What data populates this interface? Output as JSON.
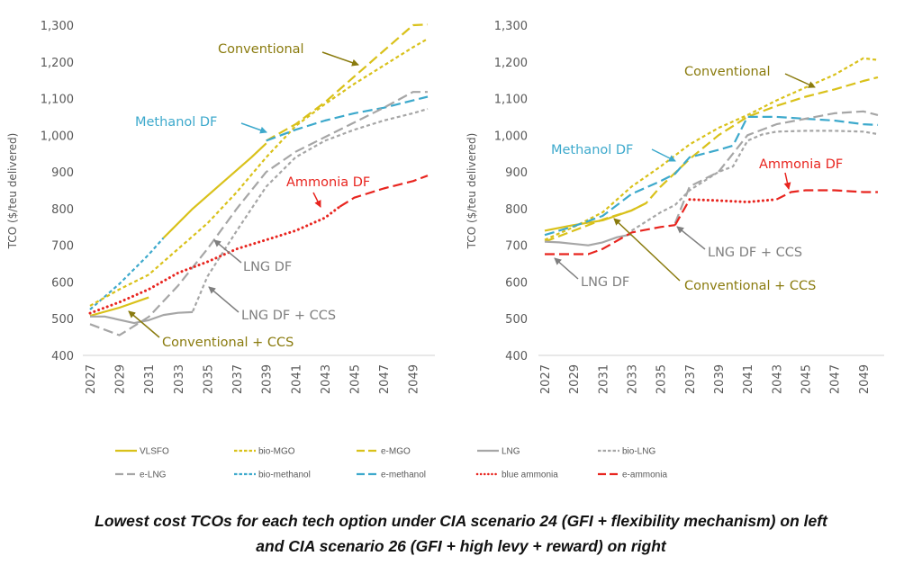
{
  "caption": {
    "line1": "Lowest cost TCOs for each tech option under CIA scenario 24 (GFI + flexibility mechanism) on left",
    "line2": "and CIA scenario 26 (GFI + high levy + reward) on right"
  },
  "series_styles": {
    "VLSFO": {
      "color": "#D9C11A",
      "dash": "solid"
    },
    "bio-MGO": {
      "color": "#D9C11A",
      "dash": "short"
    },
    "e-MGO": {
      "color": "#D9C11A",
      "dash": "long"
    },
    "LNG": {
      "color": "#A6A6A6",
      "dash": "solid"
    },
    "bio-LNG": {
      "color": "#A6A6A6",
      "dash": "short"
    },
    "e-LNG": {
      "color": "#A6A6A6",
      "dash": "long"
    },
    "bio-methanol": {
      "color": "#3DA9CC",
      "dash": "short"
    },
    "e-methanol": {
      "color": "#3DA9CC",
      "dash": "long"
    },
    "blue ammonia": {
      "color": "#E8251F",
      "dash": "dot"
    },
    "e-ammonia": {
      "color": "#E8251F",
      "dash": "long"
    }
  },
  "legend": {
    "position": "bottom",
    "items": [
      "VLSFO",
      "bio-MGO",
      "e-MGO",
      "LNG",
      "bio-LNG",
      "e-LNG",
      "bio-methanol",
      "e-methanol",
      "blue ammonia",
      "e-ammonia"
    ]
  },
  "annotation_colors": {
    "conventional": "#8A7B0E",
    "methanol": "#3DA9CC",
    "ammonia": "#E8251F",
    "lng": "#7F7F7F"
  },
  "chart_data": [
    {
      "type": "line",
      "title": "CIA scenario 24 (GFI + flexibility mechanism)",
      "ylabel": "TCO ($/teu delivered)",
      "xlabel": "",
      "ylim": [
        400,
        1300
      ],
      "yticks": [
        "400",
        "500",
        "600",
        "700",
        "800",
        "900",
        "1,000",
        "1,100",
        "1,200",
        "1,300"
      ],
      "xticks": [
        "2027",
        "2029",
        "2031",
        "2033",
        "2035",
        "2037",
        "2039",
        "2041",
        "2043",
        "2045",
        "2047",
        "2049"
      ],
      "xlim": [
        2027,
        2050
      ],
      "grid": false,
      "series": [
        {
          "name": "VLSFO",
          "x": [
            2027,
            2029,
            2031
          ],
          "values": [
            508,
            530,
            558
          ]
        },
        {
          "name": "bio-methanol",
          "x": [
            2027,
            2029,
            2031,
            2032
          ],
          "values": [
            525,
            595,
            675,
            720
          ]
        },
        {
          "name": "VLSFO",
          "x": [
            2032,
            2034,
            2036,
            2038,
            2039
          ],
          "values": [
            720,
            800,
            870,
            940,
            978
          ]
        },
        {
          "name": "e-MGO",
          "x": [
            2039,
            2041,
            2043,
            2045,
            2047,
            2049,
            2050
          ],
          "values": [
            985,
            1030,
            1090,
            1160,
            1230,
            1300,
            1302
          ]
        },
        {
          "name": "bio-MGO",
          "x": [
            2027,
            2029,
            2031,
            2033,
            2035,
            2037,
            2039,
            2041,
            2043,
            2045,
            2047,
            2049,
            2050
          ],
          "values": [
            535,
            580,
            620,
            690,
            760,
            845,
            940,
            1025,
            1085,
            1140,
            1190,
            1240,
            1263
          ]
        },
        {
          "name": "e-methanol",
          "x": [
            2039,
            2041,
            2043,
            2045,
            2047,
            2050
          ],
          "values": [
            985,
            1015,
            1040,
            1060,
            1075,
            1105
          ]
        },
        {
          "name": "LNG",
          "x": [
            2027,
            2028,
            2030,
            2031,
            2032,
            2033,
            2034
          ],
          "values": [
            506,
            506,
            488,
            496,
            510,
            516,
            518
          ]
        },
        {
          "name": "e-LNG",
          "x": [
            2027,
            2029,
            2031,
            2033,
            2035,
            2037,
            2039,
            2041,
            2043,
            2045,
            2047,
            2049,
            2050
          ],
          "values": [
            485,
            455,
            505,
            590,
            690,
            800,
            900,
            955,
            995,
            1035,
            1075,
            1118,
            1118
          ]
        },
        {
          "name": "bio-LNG",
          "x": [
            2034,
            2035,
            2037,
            2039,
            2041,
            2043,
            2045,
            2047,
            2049,
            2050
          ],
          "values": [
            520,
            615,
            740,
            860,
            940,
            985,
            1015,
            1040,
            1060,
            1072
          ]
        },
        {
          "name": "blue ammonia",
          "x": [
            2027,
            2029,
            2031,
            2033,
            2035,
            2037,
            2039,
            2041,
            2043,
            2044
          ],
          "values": [
            515,
            545,
            580,
            625,
            655,
            690,
            715,
            740,
            775,
            805
          ]
        },
        {
          "name": "e-ammonia",
          "x": [
            2044,
            2045,
            2047,
            2049,
            2050
          ],
          "values": [
            805,
            830,
            855,
            875,
            890
          ]
        }
      ],
      "annotations": [
        {
          "text": "Conventional",
          "color_key": "conventional"
        },
        {
          "text": "Methanol DF",
          "color_key": "methanol"
        },
        {
          "text": "Ammonia DF",
          "color_key": "ammonia"
        },
        {
          "text": "LNG DF",
          "color_key": "lng"
        },
        {
          "text": "LNG DF + CCS",
          "color_key": "lng"
        },
        {
          "text": "Conventional + CCS",
          "color_key": "conventional"
        }
      ]
    },
    {
      "type": "line",
      "title": "CIA scenario 26 (GFI + high levy + reward)",
      "ylabel": "TCO ($/teu delivered)",
      "xlabel": "",
      "ylim": [
        400,
        1300
      ],
      "yticks": [
        "400",
        "500",
        "600",
        "700",
        "800",
        "900",
        "1,000",
        "1,100",
        "1,200",
        "1,300"
      ],
      "xticks": [
        "2027",
        "2029",
        "2031",
        "2033",
        "2035",
        "2037",
        "2039",
        "2041",
        "2043",
        "2045",
        "2047",
        "2049"
      ],
      "xlim": [
        2027,
        2050
      ],
      "grid": false,
      "series": [
        {
          "name": "VLSFO",
          "x": [
            2027,
            2029,
            2031,
            2033,
            2034
          ],
          "values": [
            740,
            755,
            768,
            795,
            815
          ]
        },
        {
          "name": "bio-MGO",
          "x": [
            2027,
            2029,
            2031,
            2033,
            2035,
            2037,
            2039,
            2041,
            2043,
            2045,
            2047,
            2049,
            2050
          ],
          "values": [
            715,
            750,
            790,
            860,
            915,
            975,
            1020,
            1055,
            1095,
            1130,
            1165,
            1210,
            1205
          ]
        },
        {
          "name": "e-MGO",
          "x": [
            2027,
            2029,
            2031,
            2033,
            2034,
            2035,
            2037,
            2039,
            2041,
            2043,
            2045,
            2047,
            2049,
            2050
          ],
          "values": [
            710,
            740,
            770,
            795,
            815,
            860,
            935,
            1000,
            1050,
            1080,
            1105,
            1125,
            1148,
            1158
          ]
        },
        {
          "name": "e-methanol",
          "x": [
            2027,
            2029,
            2031,
            2033,
            2035,
            2036,
            2037,
            2039,
            2040,
            2041,
            2043,
            2045,
            2047,
            2049,
            2050
          ],
          "values": [
            728,
            752,
            780,
            840,
            875,
            895,
            940,
            960,
            972,
            1050,
            1050,
            1045,
            1040,
            1030,
            1028
          ]
        },
        {
          "name": "LNG",
          "x": [
            2027,
            2028,
            2030,
            2031,
            2032,
            2033
          ],
          "values": [
            710,
            708,
            700,
            708,
            722,
            730
          ]
        },
        {
          "name": "bio-LNG",
          "x": [
            2033,
            2035,
            2036,
            2037,
            2039,
            2040,
            2041,
            2042,
            2043,
            2045,
            2047,
            2049,
            2050
          ],
          "values": [
            740,
            790,
            810,
            850,
            900,
            915,
            985,
            1002,
            1010,
            1012,
            1012,
            1010,
            1003
          ]
        },
        {
          "name": "e-LNG",
          "x": [
            2036,
            2037,
            2039,
            2041,
            2043,
            2045,
            2047,
            2049,
            2050
          ],
          "values": [
            760,
            860,
            900,
            1000,
            1030,
            1045,
            1060,
            1065,
            1055
          ]
        },
        {
          "name": "e-ammonia",
          "x": [
            2027,
            2029,
            2030,
            2031,
            2033,
            2035,
            2036
          ],
          "values": [
            676,
            676,
            676,
            690,
            735,
            750,
            755
          ]
        },
        {
          "name": "e-ammonia",
          "x": [
            2036,
            2037
          ],
          "values": [
            755,
            825
          ]
        },
        {
          "name": "blue ammonia",
          "x": [
            2037,
            2039,
            2041,
            2043
          ],
          "values": [
            825,
            822,
            818,
            825
          ]
        },
        {
          "name": "e-ammonia",
          "x": [
            2043,
            2044,
            2045,
            2047,
            2049,
            2050
          ],
          "values": [
            825,
            845,
            850,
            850,
            845,
            845
          ]
        }
      ],
      "annotations": [
        {
          "text": "Conventional",
          "color_key": "conventional"
        },
        {
          "text": "Methanol DF",
          "color_key": "methanol"
        },
        {
          "text": "Ammonia DF",
          "color_key": "ammonia"
        },
        {
          "text": "LNG DF + CCS",
          "color_key": "lng"
        },
        {
          "text": "LNG DF",
          "color_key": "lng"
        },
        {
          "text": "Conventional + CCS",
          "color_key": "conventional"
        }
      ]
    }
  ]
}
